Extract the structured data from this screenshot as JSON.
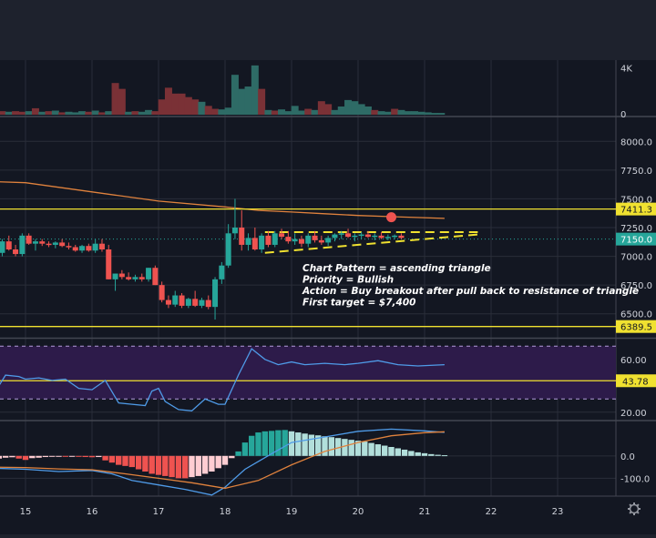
{
  "chart_data": [
    {
      "type": "bar",
      "panel": "volume",
      "x": [
        14.55,
        14.65,
        14.75,
        14.85,
        14.95,
        15.05,
        15.15,
        15.25,
        15.35,
        15.45,
        15.55,
        15.65,
        15.75,
        15.85,
        15.95,
        16.05,
        16.15,
        16.25,
        16.35,
        16.45,
        16.55,
        16.65,
        16.75,
        16.85,
        16.95,
        17.05,
        17.15,
        17.25,
        17.35,
        17.45,
        17.55,
        17.65,
        17.75,
        17.85,
        17.95,
        18.05,
        18.15,
        18.25,
        18.35,
        18.45,
        18.55,
        18.65,
        18.75,
        18.85,
        18.95,
        19.05,
        19.15,
        19.25,
        19.35,
        19.45,
        19.55,
        19.65,
        19.75,
        19.85,
        19.95,
        20.05,
        20.15,
        20.25,
        20.35,
        20.45,
        20.55,
        20.65,
        20.75,
        20.85,
        20.95,
        21.05,
        21.15,
        21.25
      ],
      "values": [
        700,
        300,
        250,
        300,
        250,
        300,
        550,
        250,
        300,
        350,
        200,
        250,
        200,
        300,
        250,
        350,
        200,
        300,
        2700,
        2200,
        250,
        300,
        250,
        400,
        300,
        1300,
        2300,
        1800,
        1800,
        1500,
        1300,
        1100,
        750,
        500,
        450,
        600,
        3400,
        2200,
        2400,
        4200,
        2200,
        400,
        350,
        450,
        300,
        750,
        350,
        500,
        400,
        1150,
        900,
        400,
        700,
        1250,
        1150,
        900,
        700,
        400,
        300,
        250,
        500,
        400,
        300,
        300,
        250,
        200,
        150,
        150
      ],
      "colors": [
        "#26a69a",
        "#ef5350",
        "#26a69a",
        "#ef5350",
        "#ef5350",
        "#26a69a",
        "#ef5350",
        "#26a69a",
        "#ef5350",
        "#26a69a",
        "#ef5350",
        "#26a69a",
        "#26a69a",
        "#26a69a",
        "#ef5350",
        "#26a69a",
        "#ef5350",
        "#26a69a",
        "#ef5350",
        "#ef5350",
        "#26a69a",
        "#ef5350",
        "#26a69a",
        "#26a69a",
        "#ef5350",
        "#ef5350",
        "#ef5350",
        "#ef5350",
        "#ef5350",
        "#ef5350",
        "#ef5350",
        "#26a69a",
        "#ef5350",
        "#ef5350",
        "#26a69a",
        "#26a69a",
        "#26a69a",
        "#26a69a",
        "#26a69a",
        "#26a69a",
        "#ef5350",
        "#26a69a",
        "#ef5350",
        "#26a69a",
        "#26a69a",
        "#26a69a",
        "#26a69a",
        "#ef5350",
        "#26a69a",
        "#ef5350",
        "#ef5350",
        "#26a69a",
        "#26a69a",
        "#26a69a",
        "#26a69a",
        "#26a69a",
        "#26a69a",
        "#ef5350",
        "#26a69a",
        "#26a69a",
        "#ef5350",
        "#26a69a",
        "#26a69a",
        "#26a69a",
        "#26a69a",
        "#26a69a",
        "#26a69a",
        "#26a69a"
      ],
      "ylim": [
        0,
        4500
      ],
      "yticks": [
        "4K",
        "0"
      ]
    },
    {
      "type": "candlestick",
      "panel": "price",
      "candles": [
        [
          14.55,
          7060,
          7100,
          7000,
          7030
        ],
        [
          14.65,
          7030,
          7150,
          7000,
          7130
        ],
        [
          14.75,
          7130,
          7180,
          7050,
          7060
        ],
        [
          14.85,
          7060,
          7100,
          7000,
          7020
        ],
        [
          14.95,
          7020,
          7200,
          7000,
          7180
        ],
        [
          15.05,
          7180,
          7200,
          7100,
          7110
        ],
        [
          15.15,
          7110,
          7150,
          7050,
          7130
        ],
        [
          15.25,
          7130,
          7150,
          7090,
          7110
        ],
        [
          15.35,
          7110,
          7130,
          7080,
          7100
        ],
        [
          15.45,
          7100,
          7130,
          7070,
          7120
        ],
        [
          15.55,
          7120,
          7150,
          7080,
          7090
        ],
        [
          15.65,
          7090,
          7120,
          7060,
          7080
        ],
        [
          15.75,
          7080,
          7100,
          7040,
          7050
        ],
        [
          15.85,
          7050,
          7100,
          7030,
          7090
        ],
        [
          15.95,
          7090,
          7110,
          7040,
          7050
        ],
        [
          16.05,
          7050,
          7150,
          7030,
          7110
        ],
        [
          16.15,
          7110,
          7150,
          7040,
          7060
        ],
        [
          16.25,
          7060,
          7100,
          6800,
          6800
        ],
        [
          16.35,
          6800,
          6850,
          6700,
          6850
        ],
        [
          16.45,
          6850,
          6880,
          6800,
          6820
        ],
        [
          16.55,
          6820,
          6860,
          6790,
          6800
        ],
        [
          16.65,
          6800,
          6840,
          6780,
          6820
        ],
        [
          16.75,
          6820,
          6850,
          6780,
          6800
        ],
        [
          16.85,
          6800,
          6900,
          6780,
          6900
        ],
        [
          16.95,
          6900,
          6920,
          6750,
          6750
        ],
        [
          17.05,
          6750,
          6780,
          6600,
          6620
        ],
        [
          17.15,
          6620,
          6660,
          6550,
          6580
        ],
        [
          17.25,
          6580,
          6700,
          6560,
          6660
        ],
        [
          17.35,
          6660,
          6680,
          6550,
          6570
        ],
        [
          17.45,
          6570,
          6640,
          6550,
          6630
        ],
        [
          17.55,
          6630,
          6700,
          6560,
          6570
        ],
        [
          17.65,
          6570,
          6640,
          6550,
          6620
        ],
        [
          17.75,
          6620,
          6660,
          6540,
          6560
        ],
        [
          17.85,
          6560,
          6820,
          6450,
          6800
        ],
        [
          17.95,
          6800,
          6950,
          6760,
          6920
        ],
        [
          18.05,
          6920,
          7280,
          6900,
          7200
        ],
        [
          18.15,
          7200,
          7500,
          7150,
          7250
        ],
        [
          18.25,
          7250,
          7400,
          7050,
          7100
        ],
        [
          18.35,
          7100,
          7200,
          7050,
          7160
        ],
        [
          18.45,
          7160,
          7250,
          7050,
          7060
        ],
        [
          18.55,
          7060,
          7200,
          7030,
          7180
        ],
        [
          18.65,
          7180,
          7220,
          7080,
          7100
        ],
        [
          18.75,
          7100,
          7220,
          7080,
          7200
        ],
        [
          18.85,
          7200,
          7240,
          7150,
          7170
        ],
        [
          18.95,
          7170,
          7220,
          7110,
          7130
        ],
        [
          19.05,
          7130,
          7200,
          7100,
          7150
        ],
        [
          19.15,
          7150,
          7180,
          7080,
          7110
        ],
        [
          19.25,
          7110,
          7200,
          7080,
          7180
        ],
        [
          19.35,
          7180,
          7220,
          7120,
          7140
        ],
        [
          19.45,
          7140,
          7180,
          7100,
          7120
        ],
        [
          19.55,
          7120,
          7180,
          7090,
          7160
        ],
        [
          19.65,
          7160,
          7200,
          7130,
          7190
        ],
        [
          19.75,
          7190,
          7220,
          7150,
          7200
        ],
        [
          19.85,
          7200,
          7240,
          7160,
          7170
        ],
        [
          19.95,
          7170,
          7200,
          7130,
          7180
        ],
        [
          20.05,
          7180,
          7210,
          7150,
          7190
        ],
        [
          20.15,
          7190,
          7220,
          7160,
          7170
        ],
        [
          20.25,
          7170,
          7200,
          7140,
          7180
        ],
        [
          20.35,
          7180,
          7210,
          7150,
          7160
        ],
        [
          20.45,
          7160,
          7190,
          7140,
          7170
        ],
        [
          20.55,
          7170,
          7190,
          7150,
          7180
        ],
        [
          20.65,
          7180,
          7200,
          7150,
          7160
        ]
      ],
      "ma": {
        "x": [
          14.5,
          15,
          16,
          17,
          18,
          18.5,
          19,
          19.5,
          20,
          20.5,
          21.3
        ],
        "y": [
          7650,
          7640,
          7560,
          7480,
          7430,
          7400,
          7385,
          7370,
          7355,
          7345,
          7330
        ]
      },
      "hlines": [
        {
          "value": 7411.3,
          "label": "7411.3",
          "color": "#f0e130"
        },
        {
          "value": 6389.5,
          "label": "6389.5",
          "color": "#f0e130"
        }
      ],
      "current_price": {
        "value": 7150.0,
        "label": "7150.0",
        "color": "#26a69a"
      },
      "triangle": {
        "upper": [
          [
            18.6,
            7210
          ],
          [
            21.8,
            7210
          ]
        ],
        "lower": [
          [
            18.6,
            7030
          ],
          [
            21.8,
            7190
          ]
        ],
        "color": "#f0e130"
      },
      "marker": {
        "x": 20.5,
        "y": 7340,
        "color": "#ef5350"
      },
      "annotation": [
        "Chart Pattern = ascending triangle",
        "Priority = Bullish",
        "Action = Buy breakout after pull back to resistance of triangle",
        "First target = $7,400"
      ],
      "ylim": [
        6300,
        8200
      ],
      "yticks": [
        "8000.0",
        "7750.0",
        "7500.0",
        "7250.0",
        "7000.0",
        "6750.0",
        "6500.0"
      ],
      "ytick_values": [
        8000,
        7750,
        7500,
        7250,
        7000,
        6750,
        6500
      ]
    },
    {
      "type": "line",
      "panel": "rsi",
      "x": [
        14.5,
        14.7,
        14.9,
        15.0,
        15.2,
        15.4,
        15.6,
        15.8,
        16.0,
        16.2,
        16.4,
        16.6,
        16.8,
        16.9,
        17.0,
        17.1,
        17.3,
        17.5,
        17.7,
        17.9,
        18.0,
        18.2,
        18.4,
        18.6,
        18.8,
        19.0,
        19.2,
        19.5,
        19.8,
        20.0,
        20.3,
        20.6,
        20.9,
        21.3
      ],
      "y": [
        32,
        48,
        47,
        45,
        46,
        44,
        45,
        38,
        37,
        44,
        27,
        26,
        25,
        36,
        38,
        28,
        22,
        21,
        30,
        26,
        26,
        48,
        68,
        60,
        56,
        58,
        56,
        57,
        56,
        57,
        59,
        56,
        55,
        56
      ],
      "level": {
        "value": 43.78,
        "label": "43.78"
      },
      "band": [
        30,
        70
      ],
      "ylim": [
        15,
        75
      ],
      "yticks": [
        "60.00",
        "20.00"
      ],
      "ytick_values": [
        60,
        20
      ]
    },
    {
      "type": "bar",
      "panel": "macd",
      "x": [
        14.5,
        14.6,
        14.7,
        14.8,
        14.9,
        15.0,
        15.1,
        15.2,
        15.3,
        15.4,
        15.5,
        15.6,
        15.7,
        15.8,
        15.9,
        16.0,
        16.1,
        16.2,
        16.3,
        16.4,
        16.5,
        16.6,
        16.7,
        16.8,
        16.9,
        17.0,
        17.1,
        17.2,
        17.3,
        17.4,
        17.5,
        17.6,
        17.7,
        17.8,
        17.9,
        18.0,
        18.1,
        18.2,
        18.3,
        18.4,
        18.5,
        18.6,
        18.7,
        18.8,
        18.9,
        19.0,
        19.1,
        19.2,
        19.3,
        19.4,
        19.5,
        19.6,
        19.7,
        19.8,
        19.9,
        20.0,
        20.1,
        20.2,
        20.3,
        20.4,
        20.5,
        20.6,
        20.7,
        20.8,
        20.9,
        21.0,
        21.1,
        21.2,
        21.3
      ],
      "values": [
        -15,
        -12,
        -8,
        -6,
        -12,
        -18,
        -10,
        -8,
        -5,
        -3,
        -2,
        -4,
        -2,
        -3,
        -5,
        -6,
        -5,
        -20,
        -30,
        -40,
        -45,
        -50,
        -60,
        -70,
        -80,
        -85,
        -90,
        -95,
        -100,
        -100,
        -95,
        -90,
        -80,
        -70,
        -55,
        -40,
        -10,
        20,
        60,
        90,
        105,
        110,
        112,
        115,
        116,
        110,
        105,
        100,
        95,
        92,
        88,
        84,
        80,
        76,
        72,
        68,
        64,
        58,
        52,
        46,
        40,
        34,
        28,
        22,
        16,
        12,
        8,
        5,
        3
      ],
      "macd_line": {
        "x": [
          14.5,
          15.0,
          15.5,
          16.0,
          16.3,
          16.6,
          17.0,
          17.4,
          17.8,
          18.0,
          18.3,
          18.7,
          19.0,
          19.5,
          20.0,
          20.5,
          21.0,
          21.3
        ],
        "y": [
          -55,
          -60,
          -70,
          -65,
          -80,
          -110,
          -130,
          -150,
          -175,
          -140,
          -60,
          10,
          60,
          85,
          110,
          120,
          112,
          105
        ]
      },
      "signal_line": {
        "x": [
          14.5,
          15.0,
          15.5,
          16.0,
          16.5,
          17.0,
          17.5,
          18.0,
          18.5,
          19.0,
          19.5,
          20.0,
          20.5,
          21.0,
          21.3
        ],
        "y": [
          -50,
          -52,
          -58,
          -62,
          -80,
          -100,
          -120,
          -145,
          -110,
          -40,
          20,
          60,
          90,
          104,
          108
        ]
      },
      "ylim": [
        -180,
        150
      ],
      "yticks": [
        "0.0",
        "-100.0"
      ],
      "ytick_values": [
        0,
        -100
      ]
    }
  ],
  "x_axis": {
    "labels": [
      "15",
      "16",
      "17",
      "18",
      "19",
      "20",
      "21",
      "22",
      "23"
    ],
    "values": [
      15,
      16,
      17,
      18,
      19,
      20,
      21,
      22,
      23
    ]
  },
  "settings_icon": "gear-icon"
}
